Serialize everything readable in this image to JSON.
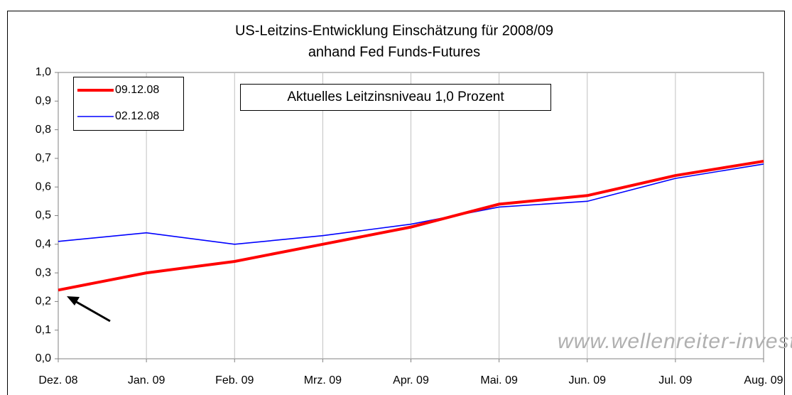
{
  "chart_data": {
    "type": "line",
    "title": "US-Leitzins-Entwicklung Einschätzung für 2008/09",
    "subtitle": "anhand Fed Funds-Futures",
    "annotation": "Aktuelles Leitzinsniveau 1,0 Prozent",
    "watermark": "www.wellenreiter-invest.de",
    "categories": [
      "Dez. 08",
      "Jan. 09",
      "Feb. 09",
      "Mrz. 09",
      "Apr. 09",
      "Mai. 09",
      "Jun. 09",
      "Jul. 09",
      "Aug. 09"
    ],
    "series": [
      {
        "name": "09.12.08",
        "color": "#ff0000",
        "values": [
          0.24,
          0.3,
          0.34,
          0.4,
          0.46,
          0.54,
          0.57,
          0.64,
          0.69
        ]
      },
      {
        "name": "02.12.08",
        "color": "#0000ff",
        "values": [
          0.41,
          0.44,
          0.4,
          0.43,
          0.47,
          0.53,
          0.55,
          0.63,
          0.68
        ]
      }
    ],
    "ylim": [
      0,
      1
    ],
    "yticks": [
      {
        "value": 0,
        "label": "0,0"
      },
      {
        "value": 0.1,
        "label": "0,1"
      },
      {
        "value": 0.2,
        "label": "0,2"
      },
      {
        "value": 0.3,
        "label": "0,3"
      },
      {
        "value": 0.4,
        "label": "0,4"
      },
      {
        "value": 0.5,
        "label": "0,5"
      },
      {
        "value": 0.6,
        "label": "0,6"
      },
      {
        "value": 0.7,
        "label": "0,7"
      },
      {
        "value": 0.8,
        "label": "0,8"
      },
      {
        "value": 0.9,
        "label": "0,9"
      },
      {
        "value": 1,
        "label": "1,0"
      }
    ],
    "grid": "vertical",
    "legend": "top-left"
  }
}
